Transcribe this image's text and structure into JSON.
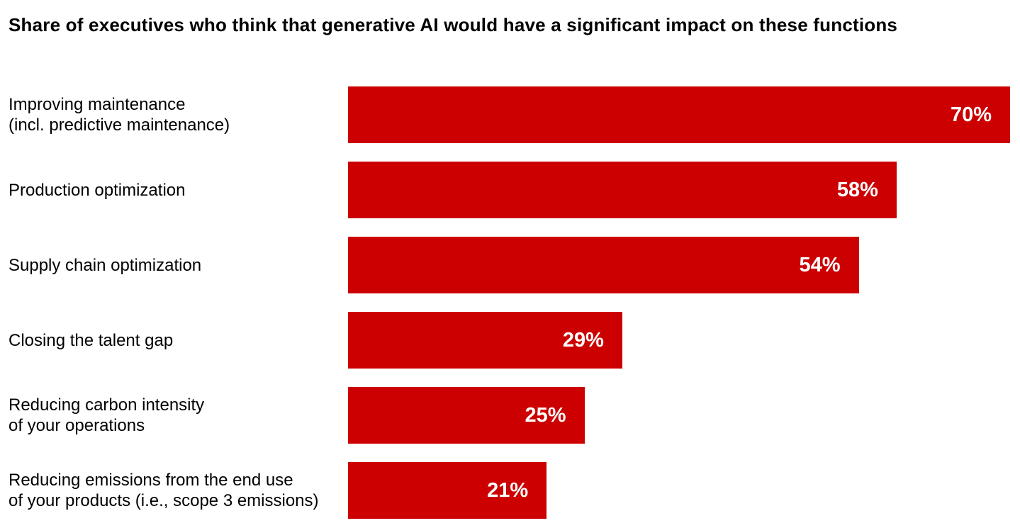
{
  "colors": {
    "bar": "#CC0000",
    "value_text": "#FFFFFF",
    "label_text": "#000000",
    "background": "#FFFFFF"
  },
  "chart_data": {
    "type": "bar",
    "orientation": "horizontal",
    "title": "Share of executives who think that generative AI would have a significant impact on these functions",
    "categories": [
      "Improving maintenance\n(incl. predictive maintenance)",
      "Production optimization",
      "Supply chain optimization",
      "Closing the talent gap",
      "Reducing carbon intensity\nof your operations",
      "Reducing emissions from the end use\nof your products (i.e., scope 3 emissions)"
    ],
    "values": [
      70,
      58,
      54,
      29,
      25,
      21
    ],
    "value_labels": [
      "70%",
      "58%",
      "54%",
      "29%",
      "25%",
      "21%"
    ],
    "unit": "%",
    "xlim": [
      0,
      70
    ],
    "grid": false,
    "legend": false,
    "value_label_position": "inside-end"
  }
}
